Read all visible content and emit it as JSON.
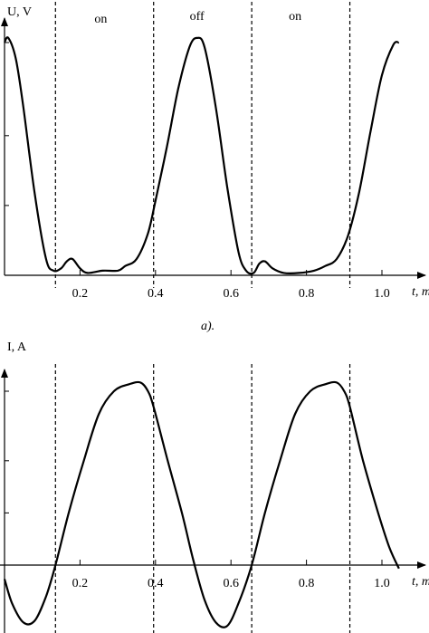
{
  "chart_data": [
    {
      "type": "line",
      "caption": "a).",
      "ylabel": "U, V",
      "xlabel": "t, ms",
      "xlim": [
        0,
        1.1
      ],
      "ylim": [
        0,
        1.1
      ],
      "x_ticks": [
        "0.2",
        "0.4",
        "0.6",
        "0.8",
        "1.0"
      ],
      "x_tick_values": [
        0.2,
        0.4,
        0.6,
        0.8,
        1.0
      ],
      "region_labels": [
        {
          "text": "on",
          "x": 0.255
        },
        {
          "text": "off",
          "x": 0.51
        },
        {
          "text": "on",
          "x": 0.77
        }
      ],
      "boundaries": [
        0.135,
        0.395,
        0.655,
        0.915
      ],
      "series": [
        {
          "x": [
            0.0,
            0.01,
            0.03,
            0.05,
            0.08,
            0.11,
            0.13,
            0.15,
            0.165,
            0.18,
            0.2,
            0.22,
            0.26,
            0.3,
            0.32,
            0.35,
            0.38,
            0.4,
            0.43,
            0.46,
            0.49,
            0.51,
            0.53,
            0.56,
            0.59,
            0.62,
            0.64,
            0.66,
            0.675,
            0.69,
            0.71,
            0.74,
            0.78,
            0.82,
            0.85,
            0.88,
            0.91,
            0.94,
            0.97,
            1.0,
            1.03,
            1.045
          ],
          "values": [
            1.0,
            1.02,
            0.93,
            0.72,
            0.35,
            0.07,
            0.02,
            0.03,
            0.06,
            0.07,
            0.03,
            0.01,
            0.02,
            0.02,
            0.04,
            0.07,
            0.18,
            0.32,
            0.55,
            0.8,
            0.98,
            1.02,
            0.98,
            0.72,
            0.38,
            0.1,
            0.02,
            0.01,
            0.05,
            0.06,
            0.03,
            0.01,
            0.01,
            0.02,
            0.04,
            0.07,
            0.17,
            0.36,
            0.62,
            0.86,
            0.99,
            1.0
          ]
        }
      ]
    },
    {
      "type": "line",
      "ylabel": "I, A",
      "xlabel": "t, ms",
      "xlim": [
        0,
        1.1
      ],
      "ylim": [
        -0.38,
        1.15
      ],
      "x_ticks": [
        "0.2",
        "0.4",
        "0.6",
        "0.8",
        "1.0"
      ],
      "x_tick_values": [
        0.2,
        0.4,
        0.6,
        0.8,
        1.0
      ],
      "boundaries": [
        0.135,
        0.395,
        0.655,
        0.915
      ],
      "series": [
        {
          "x": [
            0.0,
            0.02,
            0.05,
            0.08,
            0.11,
            0.135,
            0.17,
            0.21,
            0.25,
            0.29,
            0.33,
            0.36,
            0.38,
            0.395,
            0.43,
            0.47,
            0.5,
            0.53,
            0.56,
            0.59,
            0.62,
            0.655,
            0.69,
            0.73,
            0.77,
            0.81,
            0.85,
            0.88,
            0.9,
            0.915,
            0.95,
            0.99,
            1.02,
            1.045
          ],
          "values": [
            -0.08,
            -0.22,
            -0.33,
            -0.32,
            -0.18,
            0.0,
            0.3,
            0.6,
            0.87,
            1.0,
            1.04,
            1.05,
            1.0,
            0.91,
            0.62,
            0.3,
            0.03,
            -0.2,
            -0.33,
            -0.35,
            -0.22,
            0.0,
            0.3,
            0.6,
            0.87,
            1.0,
            1.04,
            1.05,
            1.0,
            0.91,
            0.6,
            0.3,
            0.1,
            -0.02
          ]
        }
      ]
    }
  ]
}
